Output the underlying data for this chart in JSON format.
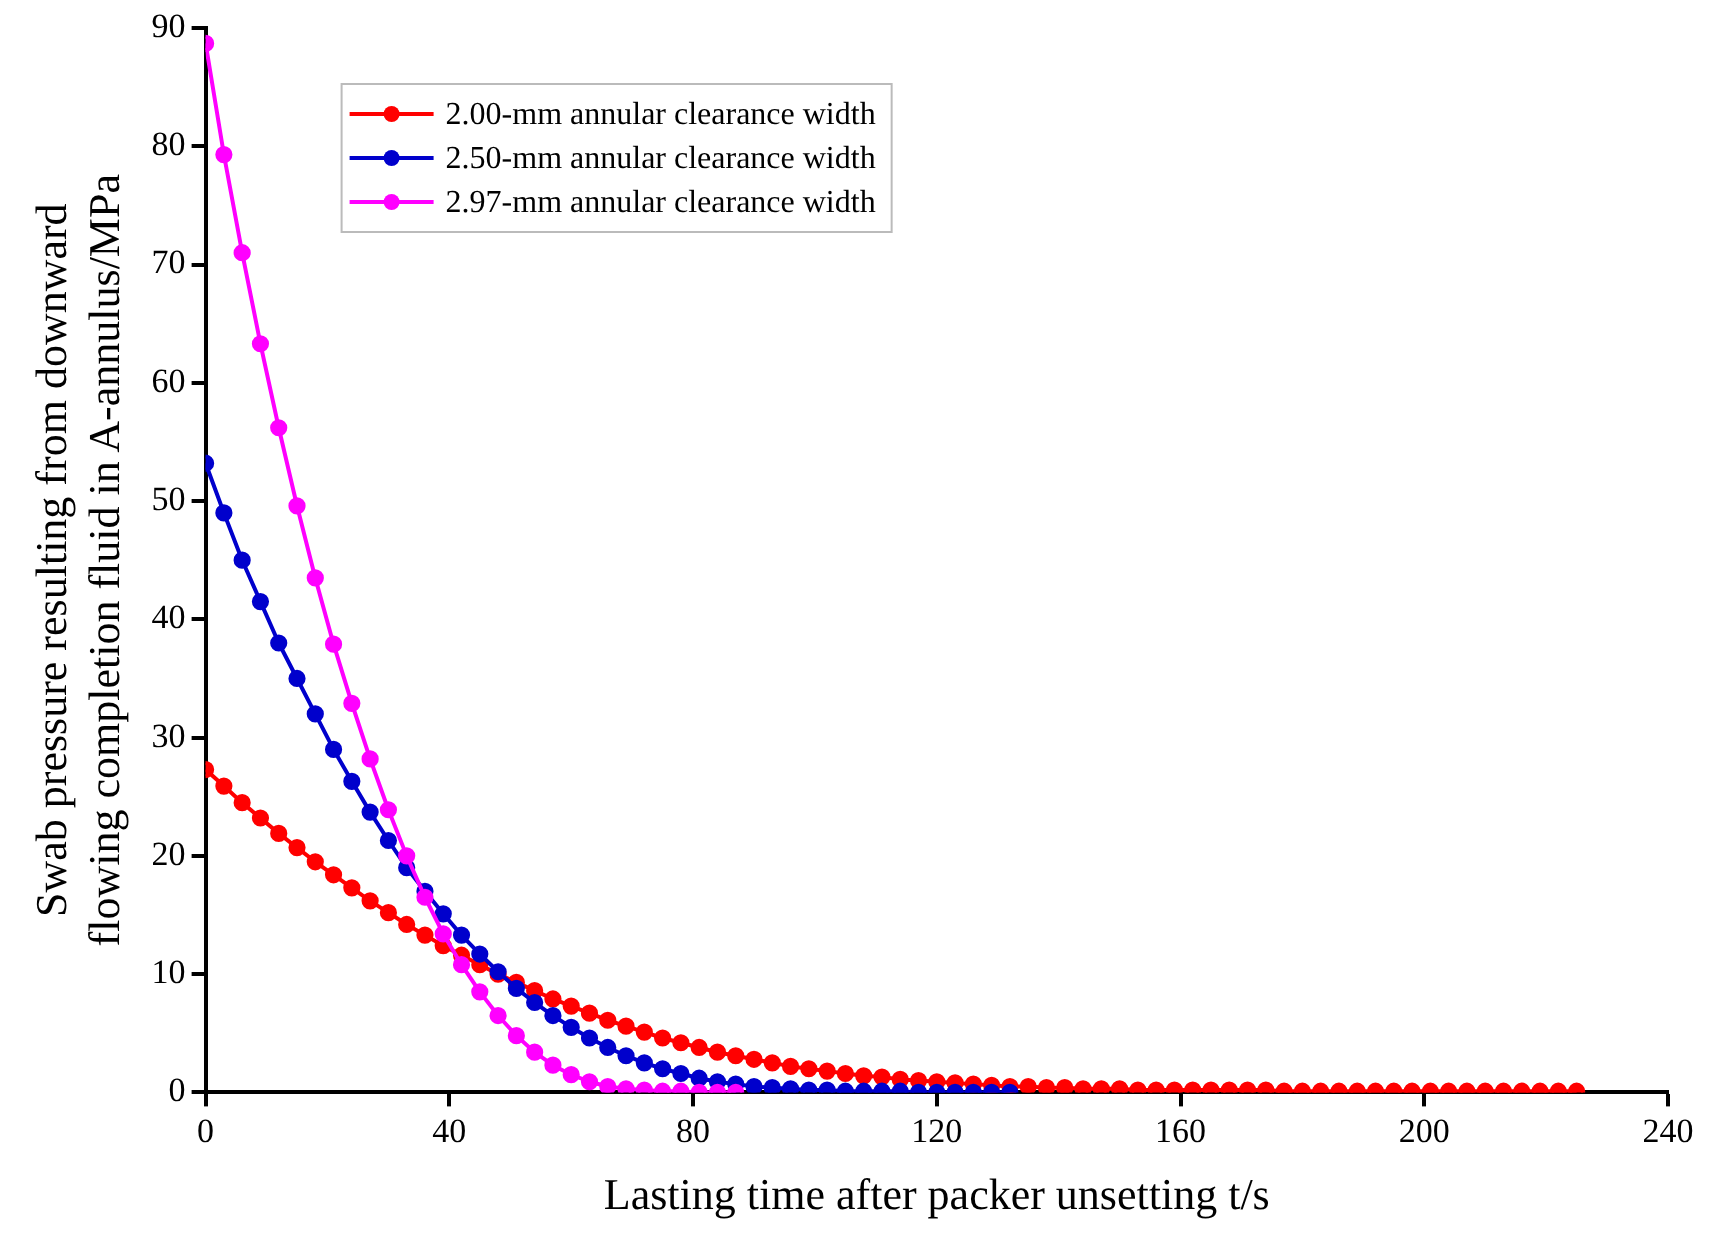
{
  "chart_data": {
    "type": "line",
    "xlabel": "Lasting time after packer unsetting t/s",
    "ylabel": "Swab pressure resulting from downward flowing completion fluid in A-annulus/MPa",
    "xlim": [
      0,
      240
    ],
    "xticks": [
      0,
      40,
      80,
      120,
      160,
      200,
      240
    ],
    "ylim": [
      0,
      90
    ],
    "yticks": [
      0,
      10,
      20,
      30,
      40,
      50,
      60,
      70,
      80,
      90
    ],
    "grid": false,
    "legend": "top left",
    "marker": "circle",
    "line_style": "solid",
    "series": [
      {
        "name": "2.00-mm annular clearance width",
        "color": "#ff0000",
        "x": [
          0,
          3,
          6,
          9,
          12,
          15,
          18,
          21,
          24,
          27,
          30,
          33,
          36,
          39,
          42,
          45,
          48,
          51,
          54,
          57,
          60,
          63,
          66,
          69,
          72,
          75,
          78,
          81,
          84,
          87,
          90,
          93,
          96,
          99,
          102,
          105,
          108,
          111,
          114,
          117,
          120,
          123,
          126,
          129,
          132,
          135,
          138,
          141,
          144,
          147,
          150,
          153,
          156,
          159,
          162,
          165,
          168,
          171,
          174,
          177,
          180,
          183,
          186,
          189,
          192,
          195,
          198,
          201,
          204,
          207,
          210,
          213,
          216,
          219,
          222,
          225
        ],
        "values": [
          27.3,
          25.9,
          24.5,
          23.2,
          21.9,
          20.7,
          19.5,
          18.4,
          17.3,
          16.2,
          15.2,
          14.2,
          13.3,
          12.4,
          11.6,
          10.8,
          10.0,
          9.3,
          8.6,
          7.9,
          7.3,
          6.7,
          6.1,
          5.6,
          5.1,
          4.6,
          4.2,
          3.8,
          3.4,
          3.1,
          2.8,
          2.5,
          2.2,
          2.0,
          1.8,
          1.6,
          1.4,
          1.3,
          1.1,
          1.0,
          0.9,
          0.8,
          0.7,
          0.6,
          0.5,
          0.5,
          0.4,
          0.4,
          0.3,
          0.3,
          0.3,
          0.2,
          0.2,
          0.2,
          0.2,
          0.2,
          0.2,
          0.2,
          0.2,
          0.1,
          0.1,
          0.1,
          0.1,
          0.1,
          0.1,
          0.1,
          0.1,
          0.1,
          0.1,
          0.1,
          0.1,
          0.1,
          0.1,
          0.1,
          0.1,
          0.1
        ]
      },
      {
        "name": "2.50-mm annular clearance width",
        "color": "#0000cc",
        "x": [
          0,
          3,
          6,
          9,
          12,
          15,
          18,
          21,
          24,
          27,
          30,
          33,
          36,
          39,
          42,
          45,
          48,
          51,
          54,
          57,
          60,
          63,
          66,
          69,
          72,
          75,
          78,
          81,
          84,
          87,
          90,
          93,
          96,
          99,
          102,
          105,
          108,
          111,
          114,
          117,
          120,
          123,
          126,
          129,
          132
        ],
        "values": [
          53.2,
          49.0,
          45.0,
          41.5,
          38.0,
          35.0,
          32.0,
          29.0,
          26.3,
          23.7,
          21.3,
          19.0,
          17.0,
          15.1,
          13.3,
          11.7,
          10.2,
          8.8,
          7.6,
          6.5,
          5.5,
          4.6,
          3.8,
          3.1,
          2.5,
          2.0,
          1.6,
          1.2,
          0.9,
          0.7,
          0.5,
          0.4,
          0.3,
          0.2,
          0.2,
          0.1,
          0.1,
          0.1,
          0.1,
          0,
          0,
          0,
          0,
          0,
          0
        ]
      },
      {
        "name": "2.97-mm annular clearance width",
        "color": "#ff00ff",
        "x": [
          0,
          3,
          6,
          9,
          12,
          15,
          18,
          21,
          24,
          27,
          30,
          33,
          36,
          39,
          42,
          45,
          48,
          51,
          54,
          57,
          60,
          63,
          66,
          69,
          72,
          75,
          78,
          81,
          84,
          87
        ],
        "values": [
          88.7,
          79.3,
          71.0,
          63.3,
          56.2,
          49.6,
          43.5,
          37.9,
          32.9,
          28.2,
          23.9,
          20.0,
          16.5,
          13.4,
          10.8,
          8.5,
          6.5,
          4.8,
          3.4,
          2.3,
          1.5,
          0.9,
          0.5,
          0.3,
          0.2,
          0.1,
          0.1,
          0,
          0,
          0
        ]
      }
    ]
  }
}
